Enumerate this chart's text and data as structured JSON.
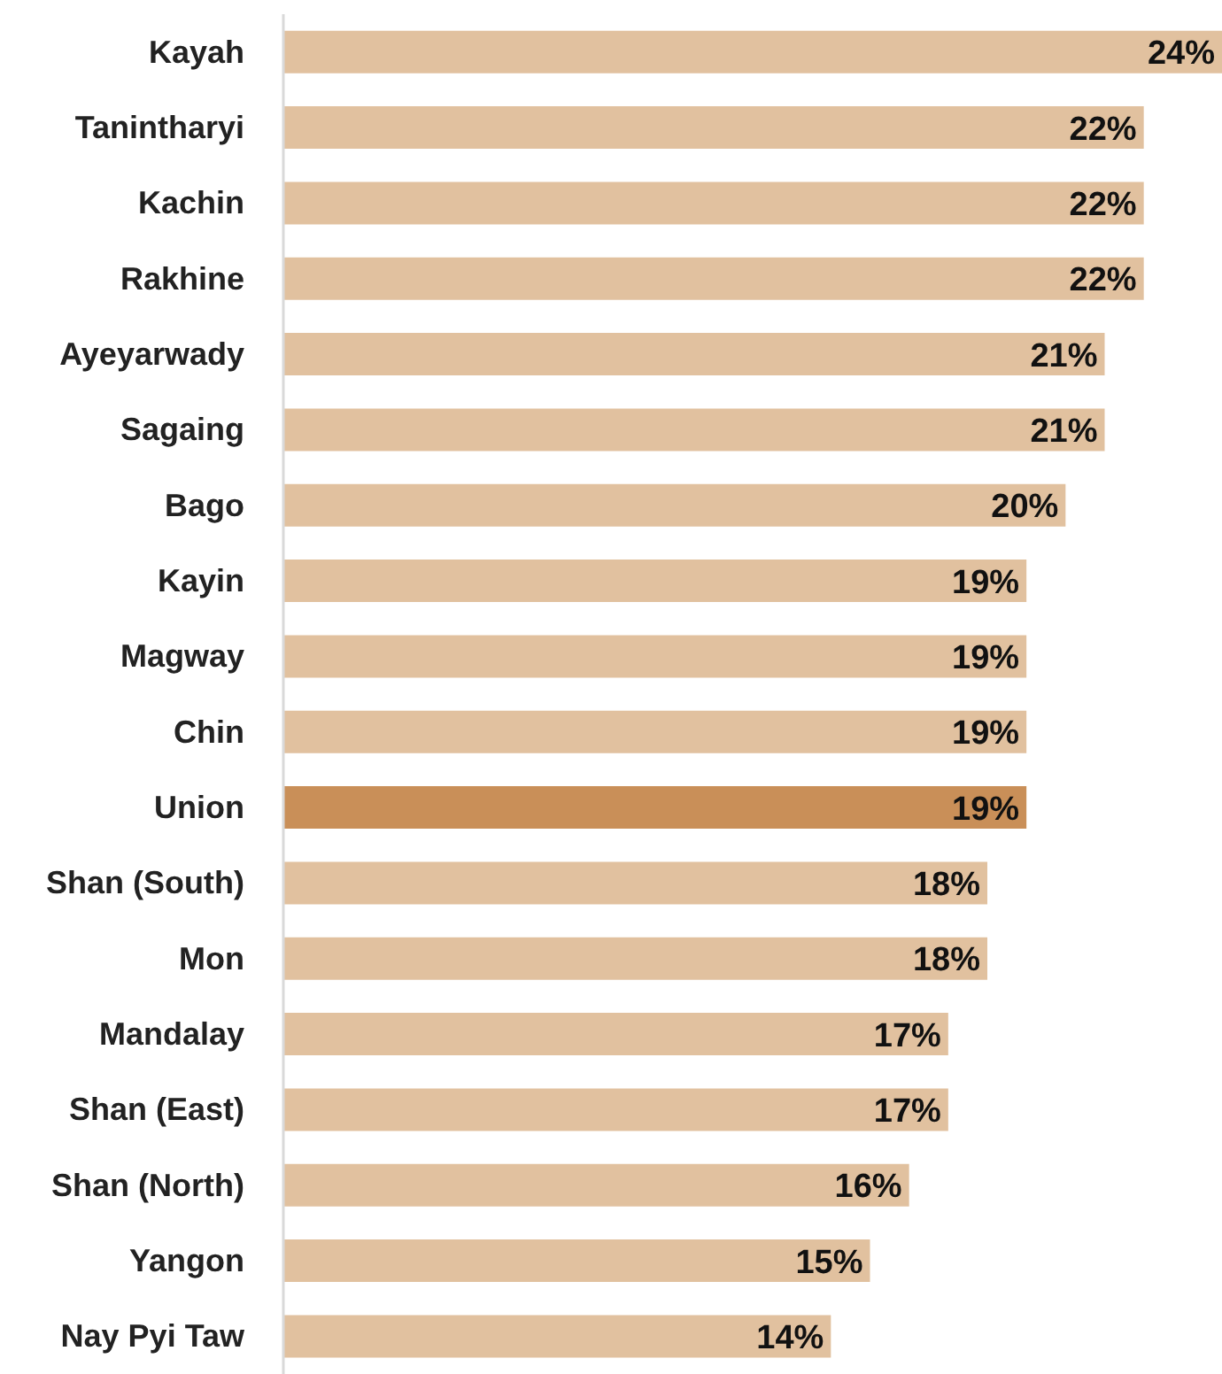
{
  "chart_data": {
    "type": "bar",
    "orientation": "horizontal",
    "categories": [
      "Kayah",
      "Tanintharyi",
      "Kachin",
      "Rakhine",
      "Ayeyarwady",
      "Sagaing",
      "Bago",
      "Kayin",
      "Magway",
      "Chin",
      "Union",
      "Shan (South)",
      "Mon",
      "Mandalay",
      "Shan (East)",
      "Shan (North)",
      "Yangon",
      "Nay Pyi Taw"
    ],
    "values": [
      24,
      22,
      22,
      22,
      21,
      21,
      20,
      19,
      19,
      19,
      19,
      18,
      18,
      17,
      17,
      16,
      15,
      14
    ],
    "value_labels": [
      "24%",
      "22%",
      "22%",
      "22%",
      "21%",
      "21%",
      "20%",
      "19%",
      "19%",
      "19%",
      "19%",
      "18%",
      "18%",
      "17%",
      "17%",
      "16%",
      "15%",
      "14%"
    ],
    "colors": [
      "#e1c19f",
      "#e1c19f",
      "#e1c19f",
      "#e1c19f",
      "#e1c19f",
      "#e1c19f",
      "#e1c19f",
      "#e1c19f",
      "#e1c19f",
      "#e1c19f",
      "#c98f58",
      "#e1c19f",
      "#e1c19f",
      "#e1c19f",
      "#e1c19f",
      "#e1c19f",
      "#e1c19f",
      "#e1c19f"
    ],
    "grid": false,
    "legend": false
  }
}
